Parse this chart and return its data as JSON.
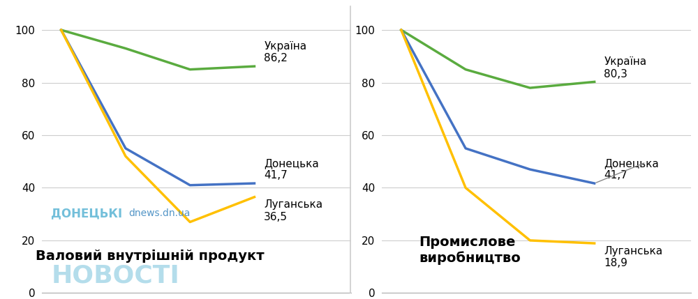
{
  "chart1": {
    "title": "Валовий внутрішній продукт",
    "x": [
      0,
      1,
      2,
      3
    ],
    "ukraine": [
      100,
      93,
      85,
      86.2
    ],
    "donetsk": [
      100,
      55,
      41,
      41.7
    ],
    "luhansk": [
      100,
      52,
      27,
      36.5
    ],
    "label_ukraine": "Україна\n86,2",
    "label_donetsk": "Донецька\n41,7",
    "label_luhansk": "Луганська\n36,5"
  },
  "chart2": {
    "title": "Промислове\nвиробництво",
    "x": [
      0,
      1,
      2,
      3
    ],
    "ukraine": [
      100,
      85,
      78,
      80.3
    ],
    "donetsk": [
      100,
      55,
      47,
      41.7
    ],
    "luhansk": [
      100,
      40,
      20,
      18.9
    ],
    "label_ukraine": "Україна\n80,3",
    "label_donetsk": "Донецька\n41,7",
    "label_luhansk": "Луганська\n18,9"
  },
  "color_ukraine": "#5aab3f",
  "color_donetsk": "#4472c4",
  "color_luhansk": "#ffc000",
  "yticks": [
    0,
    20,
    40,
    60,
    80,
    100
  ],
  "ylim": [
    0,
    108
  ],
  "background_color": "#ffffff",
  "watermark_line1": "ДОНЕЦЬКІ",
  "watermark_line2": "НОВОСТІ",
  "watermark_url": "dnews.dn.ua",
  "linewidth": 2.5,
  "label_fontsize": 11,
  "tick_fontsize": 11,
  "title_fontsize": 14
}
